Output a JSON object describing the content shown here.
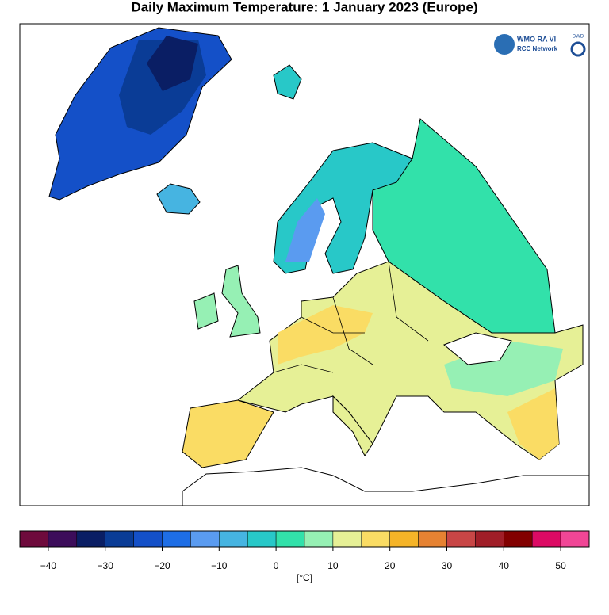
{
  "title": "Daily Maximum Temperature:  1 January 2023  (Europe)",
  "logo": {
    "org": "WMO RA VI",
    "network": "RCC Network",
    "dwd": "DWD"
  },
  "colorbar": {
    "unit": "[°C]",
    "bounds": [
      -45,
      -40,
      -35,
      -30,
      -25,
      -20,
      -15,
      -10,
      -5,
      0,
      5,
      10,
      15,
      20,
      25,
      30,
      35,
      40,
      45,
      50,
      55
    ],
    "colors": [
      "#6e0a3c",
      "#3c0c5a",
      "#0a1e64",
      "#0a3c96",
      "#1450c8",
      "#1e6ee6",
      "#5a9bf0",
      "#46b4e1",
      "#28c8c8",
      "#32e1aa",
      "#96f0b4",
      "#e6f096",
      "#fadc64",
      "#f5b428",
      "#e68232",
      "#c84646",
      "#a01e28",
      "#820000",
      "#dc0a64",
      "#f04696"
    ],
    "ticks": [
      {
        "value": -40,
        "label": "−40"
      },
      {
        "value": -30,
        "label": "−30"
      },
      {
        "value": -20,
        "label": "−20"
      },
      {
        "value": -10,
        "label": "−10"
      },
      0,
      10,
      20,
      30,
      40,
      50
    ]
  }
}
